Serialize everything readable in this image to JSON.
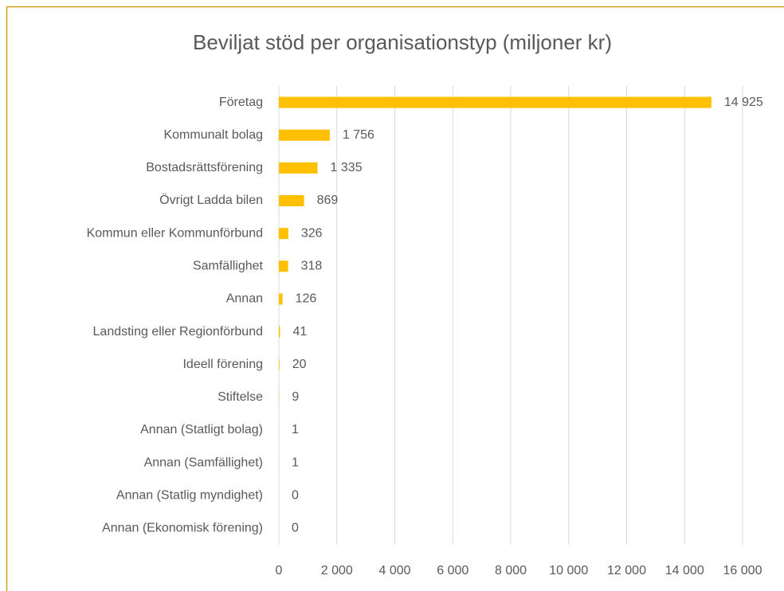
{
  "chart_data": {
    "type": "bar",
    "orientation": "horizontal",
    "title": "Beviljat stöd per organisationstyp (miljoner kr)",
    "categories": [
      "Företag",
      "Kommunalt bolag",
      "Bostadsrättsförening",
      "Övrigt Ladda bilen",
      "Kommun eller Kommunförbund",
      "Samfällighet",
      "Annan",
      "Landsting eller Regionförbund",
      "Ideell förening",
      "Stiftelse",
      "Annan (Statligt bolag)",
      "Annan (Samfällighet)",
      "Annan (Statlig myndighet)",
      "Annan (Ekonomisk förening)"
    ],
    "values": [
      14925,
      1756,
      1335,
      869,
      326,
      318,
      126,
      41,
      20,
      9,
      1,
      1,
      0,
      0
    ],
    "value_labels": [
      "14 925",
      "1 756",
      "1 335",
      "869",
      "326",
      "318",
      "126",
      "41",
      "20",
      "9",
      "1",
      "1",
      "0",
      "0"
    ],
    "color": "#ffc000",
    "xlim": [
      0,
      16000
    ],
    "xticks": [
      0,
      {
        "value": 2000,
        "label": "2 000"
      },
      {
        "value": 4000,
        "label": "4 000"
      },
      {
        "value": 6000,
        "label": "6 000"
      },
      {
        "value": 8000,
        "label": "8 000"
      },
      {
        "value": 10000,
        "label": "10 000"
      },
      {
        "value": 12000,
        "label": "12 000"
      },
      {
        "value": 14000,
        "label": "14 000"
      },
      {
        "value": 16000,
        "label": "16 000"
      }
    ],
    "grid": true
  }
}
